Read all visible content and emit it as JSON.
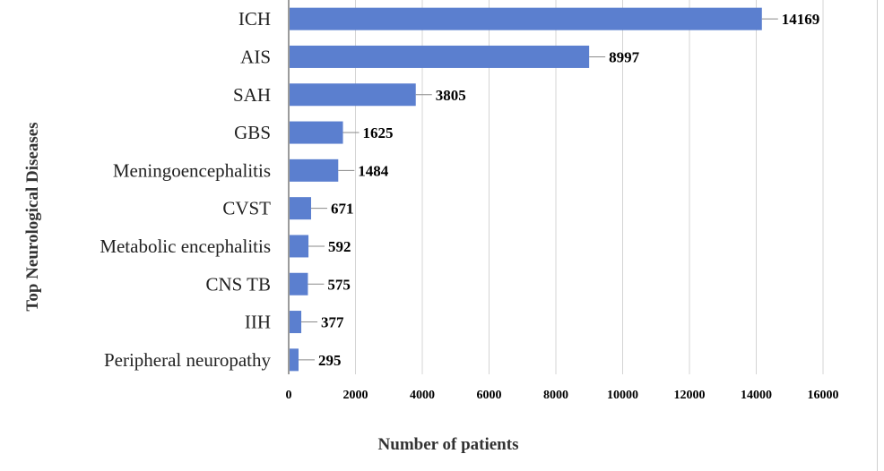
{
  "chart_data": {
    "type": "bar",
    "orientation": "horizontal",
    "categories": [
      "ICH",
      "AIS",
      "SAH",
      "GBS",
      "Meningoencephalitis",
      "CVST",
      "Metabolic encephalitis",
      "CNS TB",
      "IIH",
      "Peripheral neuropathy"
    ],
    "values": [
      14169,
      8997,
      3805,
      1625,
      1484,
      671,
      592,
      575,
      377,
      295
    ],
    "xlabel": "Number of patients",
    "ylabel": "Top Neurological Diseases",
    "xlim": [
      0,
      16000
    ],
    "xticks": [
      "0",
      "2000",
      "4000",
      "6000",
      "8000",
      "10000",
      "12000",
      "14000",
      "16000"
    ],
    "grid": "vertical",
    "legend": "none",
    "bar_color": "#5b7fcf",
    "grid_color": "#d4d4d4"
  }
}
